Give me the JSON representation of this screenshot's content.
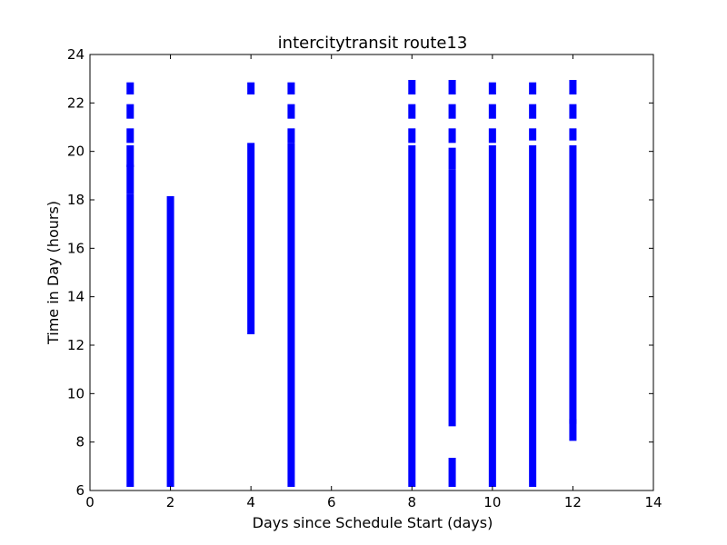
{
  "chart_data": {
    "type": "scatter",
    "title": "intercitytransit route13",
    "xlabel": "Days since Schedule Start (days)",
    "ylabel": "Time in Day (hours)",
    "xlim": [
      0,
      14
    ],
    "ylim": [
      6,
      24
    ],
    "xticks": [
      "0",
      "2",
      "4",
      "6",
      "8",
      "10",
      "12",
      "14"
    ],
    "yticks": [
      "6",
      "8",
      "10",
      "12",
      "14",
      "16",
      "18",
      "20",
      "22",
      "24"
    ],
    "grid": false,
    "legend": "none",
    "marker": "square",
    "marker_color": "#0000ff",
    "series": [
      {
        "x": 1,
        "ranges": [
          [
            6.3,
            18.1
          ],
          [
            18.4,
            19.3
          ],
          [
            19.5,
            20.1
          ],
          [
            20.5,
            20.8
          ],
          [
            21.5,
            21.8
          ],
          [
            22.5,
            22.7
          ]
        ]
      },
      {
        "x": 2,
        "ranges": [
          [
            6.3,
            18.0
          ]
        ]
      },
      {
        "x": 4,
        "ranges": [
          [
            12.6,
            20.2
          ],
          [
            22.5,
            22.7
          ]
        ]
      },
      {
        "x": 5,
        "ranges": [
          [
            6.3,
            20.2
          ],
          [
            20.5,
            20.8
          ],
          [
            21.5,
            21.8
          ],
          [
            22.5,
            22.7
          ]
        ]
      },
      {
        "x": 8,
        "ranges": [
          [
            6.3,
            20.1
          ],
          [
            20.5,
            20.8
          ],
          [
            21.5,
            21.8
          ],
          [
            22.5,
            22.8
          ]
        ]
      },
      {
        "x": 9,
        "ranges": [
          [
            6.3,
            7.2
          ],
          [
            8.8,
            19.1
          ],
          [
            19.4,
            20.0
          ],
          [
            20.5,
            20.8
          ],
          [
            21.5,
            21.8
          ],
          [
            22.5,
            22.8
          ]
        ]
      },
      {
        "x": 10,
        "ranges": [
          [
            6.3,
            20.1
          ],
          [
            20.5,
            20.8
          ],
          [
            21.5,
            21.8
          ],
          [
            22.5,
            22.7
          ]
        ]
      },
      {
        "x": 11,
        "ranges": [
          [
            6.3,
            20.1
          ],
          [
            20.6,
            20.8
          ],
          [
            21.5,
            21.8
          ],
          [
            22.5,
            22.7
          ]
        ]
      },
      {
        "x": 12,
        "ranges": [
          [
            8.2,
            8.8
          ],
          [
            8.9,
            20.1
          ],
          [
            20.6,
            20.8
          ],
          [
            21.5,
            21.8
          ],
          [
            22.5,
            22.8
          ]
        ]
      }
    ]
  }
}
